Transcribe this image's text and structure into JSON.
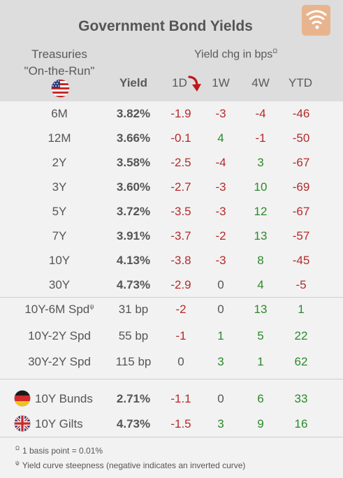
{
  "title": "Government Bond Yields",
  "treasuries_line1": "Treasuries",
  "treasuries_line2": "\"On-the-Run\"",
  "change_header": "Yield chg in bps",
  "change_header_marker": "Ω",
  "columns": {
    "yield": "Yield",
    "d1": "1D",
    "w1": "1W",
    "w4": "4W",
    "ytd": "YTD"
  },
  "rows": [
    {
      "label": "6M",
      "yield": "3.82%",
      "d1": "-1.9",
      "w1": "-3",
      "w4": "-4",
      "ytd": "-46"
    },
    {
      "label": "12M",
      "yield": "3.66%",
      "d1": "-0.1",
      "w1": "4",
      "w4": "-1",
      "ytd": "-50"
    },
    {
      "label": "2Y",
      "yield": "3.58%",
      "d1": "-2.5",
      "w1": "-4",
      "w4": "3",
      "ytd": "-67"
    },
    {
      "label": "3Y",
      "yield": "3.60%",
      "d1": "-2.7",
      "w1": "-3",
      "w4": "10",
      "ytd": "-69"
    },
    {
      "label": "5Y",
      "yield": "3.72%",
      "d1": "-3.5",
      "w1": "-3",
      "w4": "12",
      "ytd": "-67"
    },
    {
      "label": "7Y",
      "yield": "3.91%",
      "d1": "-3.7",
      "w1": "-2",
      "w4": "13",
      "ytd": "-57"
    },
    {
      "label": "10Y",
      "yield": "4.13%",
      "d1": "-3.8",
      "w1": "-3",
      "w4": "8",
      "ytd": "-45"
    },
    {
      "label": "30Y",
      "yield": "4.73%",
      "d1": "-2.9",
      "w1": "0",
      "w4": "4",
      "ytd": "-5"
    }
  ],
  "spreads": [
    {
      "label": "10Y-6M Spd",
      "marker": "ψ",
      "yield": "31 bp",
      "d1": "-2",
      "w1": "0",
      "w4": "13",
      "ytd": "1"
    },
    {
      "label": "10Y-2Y Spd",
      "marker": "",
      "yield": "55 bp",
      "d1": "-1",
      "w1": "1",
      "w4": "5",
      "ytd": "22"
    },
    {
      "label": "30Y-2Y Spd",
      "marker": "",
      "yield": "115 bp",
      "d1": "0",
      "w1": "3",
      "w4": "1",
      "ytd": "62"
    }
  ],
  "international": [
    {
      "label": "10Y Bunds",
      "flag": "germany-flag-icon",
      "yield": "2.71%",
      "d1": "-1.1",
      "w1": "0",
      "w4": "6",
      "ytd": "33"
    },
    {
      "label": "10Y Gilts",
      "flag": "uk-flag-icon",
      "yield": "4.73%",
      "d1": "-1.5",
      "w1": "3",
      "w4": "9",
      "ytd": "16"
    }
  ],
  "notes": [
    {
      "marker": "Ω",
      "text": "1 basis point = 0.01%"
    },
    {
      "marker": "ψ",
      "text": "Yield curve steepness (negative indicates an inverted curve)"
    }
  ],
  "colors": {
    "negative": "#b52a2a",
    "positive": "#2a8a2a",
    "header_bg": "#dddddd",
    "body_bg": "#f2f2f2",
    "logo": "#e8b48e"
  }
}
